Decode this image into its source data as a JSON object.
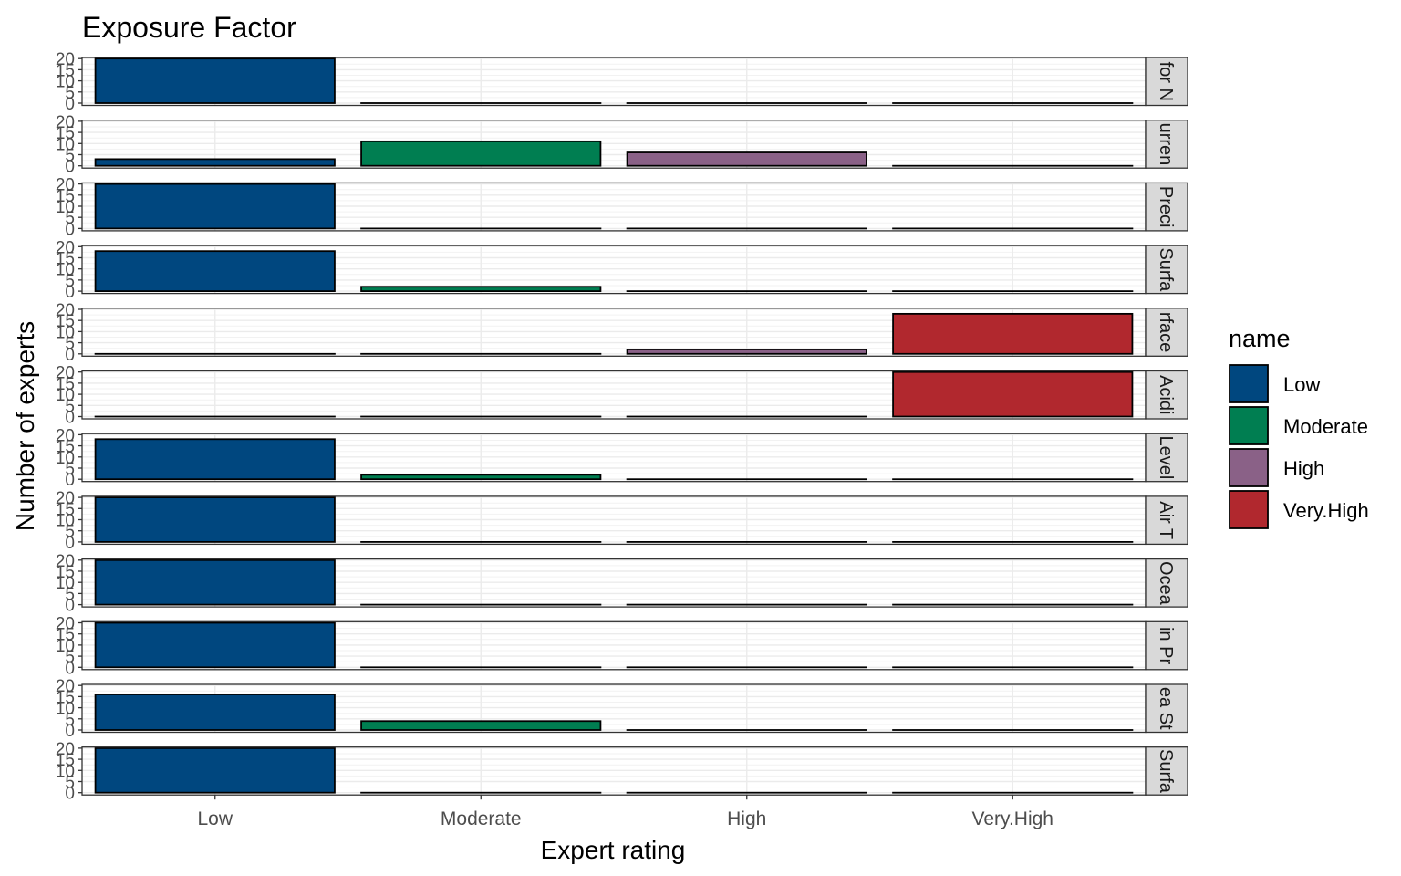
{
  "chart_data": {
    "type": "bar",
    "title": "Exposure Factor",
    "xlabel": "Expert rating",
    "ylabel": "Number of experts",
    "categories": [
      "Low",
      "Moderate",
      "High",
      "Very.High"
    ],
    "ylim": [
      0,
      20
    ],
    "yticks": [
      0,
      5,
      10,
      15,
      20
    ],
    "grid": true,
    "legend": {
      "title": "name",
      "position": "right",
      "entries": [
        "Low",
        "Moderate",
        "High",
        "Very.High"
      ]
    },
    "colors": {
      "Low": "#00477f",
      "Moderate": "#007e51",
      "High": "#8a6187",
      "Very.High": "#b1282e"
    },
    "panels": [
      {
        "strip": "for N",
        "values": [
          20,
          0,
          0,
          0
        ]
      },
      {
        "strip": "urren",
        "values": [
          3,
          11,
          6,
          0
        ]
      },
      {
        "strip": "Preci",
        "values": [
          20,
          0,
          0,
          0
        ]
      },
      {
        "strip": "Surfa",
        "values": [
          18,
          2,
          0,
          0
        ]
      },
      {
        "strip": "rface",
        "values": [
          0,
          0,
          2,
          18
        ]
      },
      {
        "strip": "Acidi",
        "values": [
          0,
          0,
          0,
          20
        ]
      },
      {
        "strip": "Level",
        "values": [
          18,
          2,
          0,
          0
        ]
      },
      {
        "strip": "Air T",
        "values": [
          20,
          0,
          0,
          0
        ]
      },
      {
        "strip": "Ocea",
        "values": [
          20,
          0,
          0,
          0
        ]
      },
      {
        "strip": "in Pr",
        "values": [
          20,
          0,
          0,
          0
        ]
      },
      {
        "strip": "ea St",
        "values": [
          16,
          4,
          0,
          0
        ]
      },
      {
        "strip": "Surfa",
        "values": [
          20,
          0,
          0,
          0
        ]
      }
    ]
  }
}
